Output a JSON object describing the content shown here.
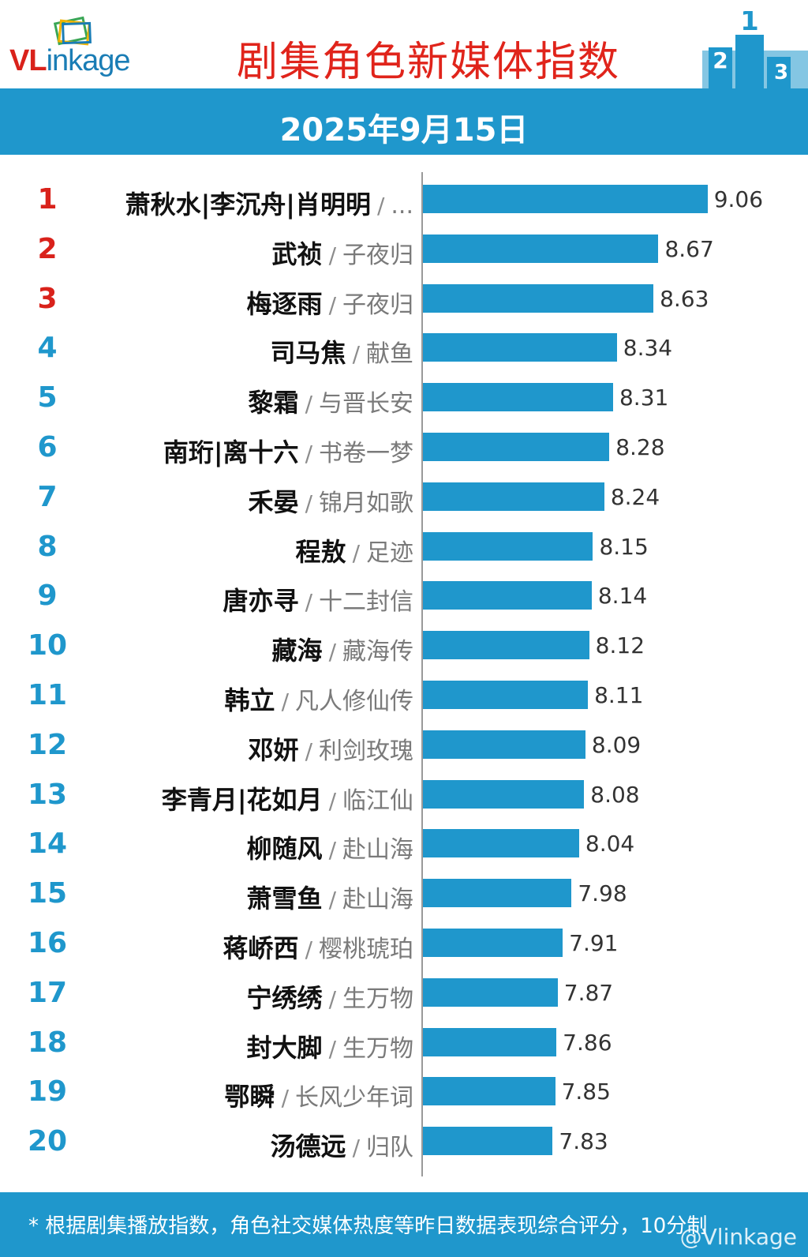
{
  "header": {
    "logo_v": "V",
    "logo_l": "L",
    "logo_rest": "inkage",
    "title": "剧集角色新媒体指数",
    "podium_numbers": [
      "2",
      "1",
      "3"
    ],
    "date": "2025年9月15日"
  },
  "colors": {
    "bar": "#1f97cc",
    "top_rank": "#d9221b",
    "rank": "#1f97cc",
    "title": "#e0241b"
  },
  "chart_data": {
    "type": "bar",
    "orientation": "horizontal",
    "title": "剧集角色新媒体指数",
    "subtitle": "2025年9月15日",
    "xlim": [
      6.8,
      9.3
    ],
    "separator": "/",
    "ranks": [
      "1",
      "2",
      "3",
      "4",
      "5",
      "6",
      "7",
      "8",
      "9",
      "10",
      "11",
      "12",
      "13",
      "14",
      "15",
      "16",
      "17",
      "18",
      "19",
      "20"
    ],
    "characters": [
      "萧秋水|李沉舟|肖明明",
      "武祯",
      "梅逐雨",
      "司马焦",
      "黎霜",
      "南珩|离十六",
      "禾晏",
      "程敖",
      "唐亦寻",
      "藏海",
      "韩立",
      "邓妍",
      "李青月|花如月",
      "柳随风",
      "萧雪鱼",
      "蒋峤西",
      "宁绣绣",
      "封大脚",
      "鄂瞬",
      "汤德远"
    ],
    "shows": [
      "...",
      "子夜归",
      "子夜归",
      "献鱼",
      "与晋长安",
      "书卷一梦",
      "锦月如歌",
      "足迹",
      "十二封信",
      "藏海传",
      "凡人修仙传",
      "利剑玫瑰",
      "临江仙",
      "赴山海",
      "赴山海",
      "樱桃琥珀",
      "生万物",
      "生万物",
      "长风少年词",
      "归队"
    ],
    "values": [
      9.06,
      8.67,
      8.63,
      8.34,
      8.31,
      8.28,
      8.24,
      8.15,
      8.14,
      8.12,
      8.11,
      8.09,
      8.08,
      8.04,
      7.98,
      7.91,
      7.87,
      7.86,
      7.85,
      7.83
    ],
    "value_labels": [
      "9.06",
      "8.67",
      "8.63",
      "8.34",
      "8.31",
      "8.28",
      "8.24",
      "8.15",
      "8.14",
      "8.12",
      "8.11",
      "8.09",
      "8.08",
      "8.04",
      "7.98",
      "7.91",
      "7.87",
      "7.86",
      "7.85",
      "7.83"
    ]
  },
  "footer": {
    "note": "* 根据剧集播放指数，角色社交媒体热度等昨日数据表现综合评分，10分制",
    "watermark": "@Vlinkage"
  }
}
